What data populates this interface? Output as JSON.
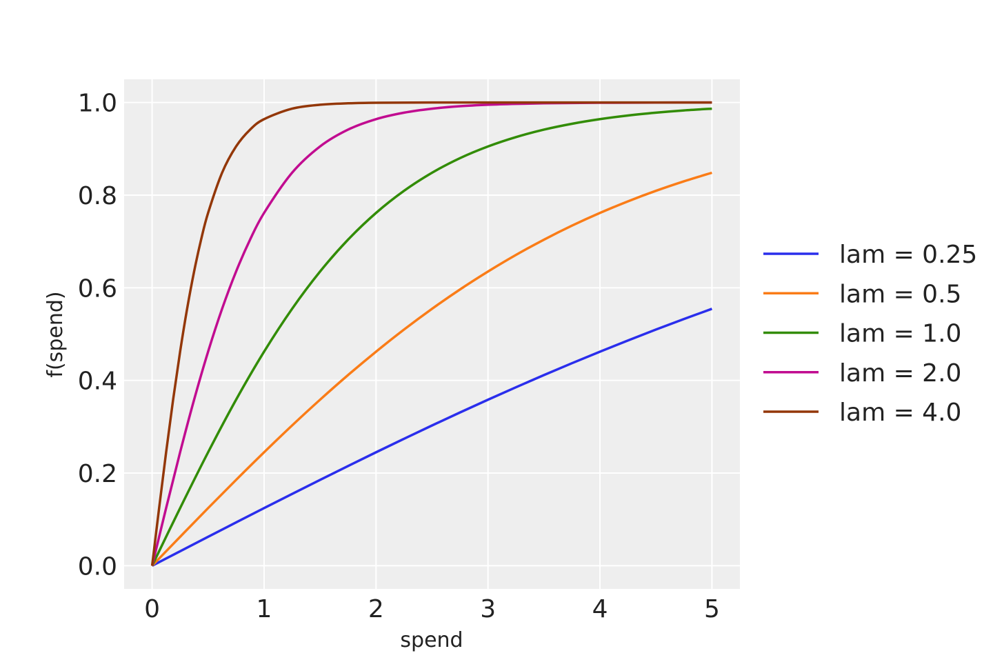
{
  "chart_data": {
    "type": "line",
    "xlabel": "spend",
    "ylabel": "f(spend)",
    "xlim": [
      -0.25,
      5.25
    ],
    "ylim": [
      -0.05,
      1.05
    ],
    "xticks": [
      0,
      1,
      2,
      3,
      4,
      5
    ],
    "xtick_labels": [
      "0",
      "1",
      "2",
      "3",
      "4",
      "5"
    ],
    "yticks": [
      0.0,
      0.2,
      0.4,
      0.6,
      0.8,
      1.0
    ],
    "ytick_labels": [
      "0.0",
      "0.2",
      "0.4",
      "0.6",
      "0.8",
      "1.0"
    ],
    "grid": true,
    "background": "#eeeeee",
    "legend_position": "right-outside",
    "series": [
      {
        "name": "lam = 0.25",
        "color": "#2a2eec",
        "x": [
          0,
          0.25,
          0.5,
          0.75,
          1,
          1.25,
          1.5,
          1.75,
          2,
          2.25,
          2.5,
          2.75,
          3,
          3.25,
          3.5,
          3.75,
          4,
          4.25,
          4.5,
          4.75,
          5
        ],
        "y": [
          0,
          0.0312,
          0.0624,
          0.0935,
          0.1244,
          0.155,
          0.1853,
          0.2153,
          0.2449,
          0.2741,
          0.3028,
          0.3309,
          0.3584,
          0.3853,
          0.4116,
          0.4372,
          0.4621,
          0.4863,
          0.5098,
          0.5325,
          0.5546
        ]
      },
      {
        "name": "lam = 0.5",
        "color": "#fa7c17",
        "x": [
          0,
          0.25,
          0.5,
          0.75,
          1,
          1.25,
          1.5,
          1.75,
          2,
          2.25,
          2.5,
          2.75,
          3,
          3.25,
          3.5,
          3.75,
          4,
          4.25,
          4.5,
          4.75,
          5
        ],
        "y": [
          0,
          0.0624,
          0.1244,
          0.1853,
          0.2449,
          0.3028,
          0.3584,
          0.4116,
          0.4621,
          0.5098,
          0.5546,
          0.5964,
          0.6351,
          0.671,
          0.7039,
          0.7341,
          0.7616,
          0.7866,
          0.8093,
          0.8298,
          0.8483
        ]
      },
      {
        "name": "lam = 1.0",
        "color": "#328c06",
        "x": [
          0,
          0.25,
          0.5,
          0.75,
          1,
          1.25,
          1.5,
          1.75,
          2,
          2.25,
          2.5,
          2.75,
          3,
          3.25,
          3.5,
          3.75,
          4,
          4.25,
          4.5,
          4.75,
          5
        ],
        "y": [
          0,
          0.1244,
          0.2449,
          0.3584,
          0.4621,
          0.5546,
          0.6351,
          0.7039,
          0.7616,
          0.8093,
          0.8483,
          0.8799,
          0.9051,
          0.9253,
          0.9414,
          0.954,
          0.964,
          0.9719,
          0.978,
          0.9829,
          0.9866
        ]
      },
      {
        "name": "lam = 2.0",
        "color": "#c10c90",
        "x": [
          0,
          0.125,
          0.25,
          0.375,
          0.5,
          0.625,
          0.75,
          0.875,
          1,
          1.25,
          1.5,
          1.75,
          2,
          2.25,
          2.5,
          2.75,
          3,
          3.25,
          3.5,
          3.75,
          4,
          4.5,
          5
        ],
        "y": [
          0,
          0.1244,
          0.2449,
          0.3584,
          0.4621,
          0.5546,
          0.6351,
          0.7039,
          0.7616,
          0.8483,
          0.9051,
          0.9414,
          0.964,
          0.978,
          0.9866,
          0.9919,
          0.9951,
          0.997,
          0.9982,
          0.9989,
          0.9993,
          0.9998,
          0.9999
        ]
      },
      {
        "name": "lam = 4.0",
        "color": "#933708",
        "x": [
          0,
          0.0625,
          0.125,
          0.1875,
          0.25,
          0.3125,
          0.375,
          0.4375,
          0.5,
          0.625,
          0.75,
          0.875,
          1,
          1.25,
          1.5,
          1.75,
          2,
          2.5,
          3,
          4,
          5
        ],
        "y": [
          0,
          0.1244,
          0.2449,
          0.3584,
          0.4621,
          0.5546,
          0.6351,
          0.7039,
          0.7616,
          0.8483,
          0.9051,
          0.9414,
          0.964,
          0.9866,
          0.9951,
          0.9982,
          0.9993,
          0.9999,
          1.0,
          1.0,
          1.0
        ]
      }
    ]
  }
}
